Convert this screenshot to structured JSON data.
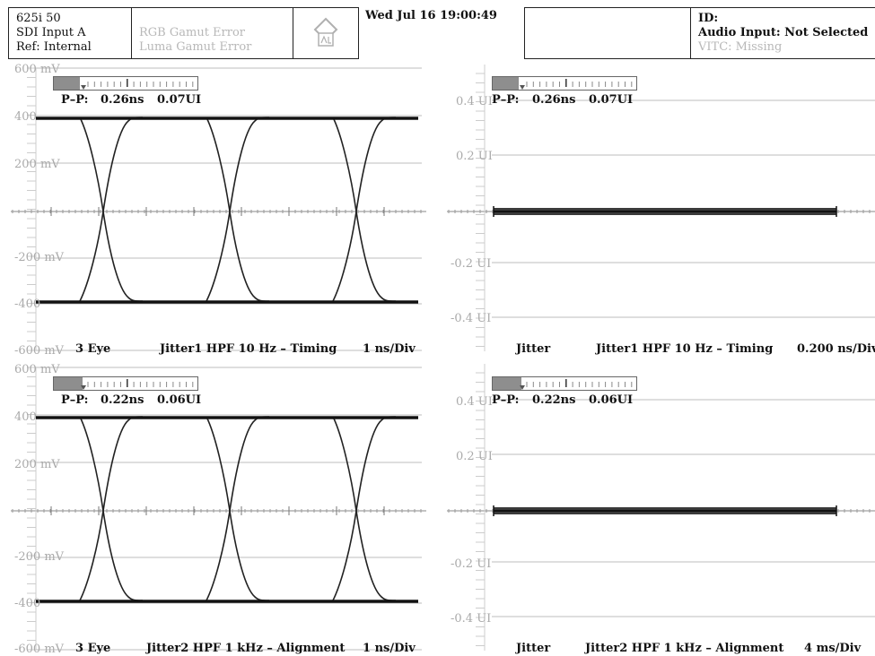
{
  "header": {
    "format": "625i 50",
    "input": "SDI Input A",
    "ref": "Ref: Internal",
    "rgb_gamut": "RGB Gamut Error",
    "luma_gamut": "Luma Gamut Error",
    "datetime": "Wed Jul 16 19:00:49",
    "id": "ID:",
    "audio": "Audio Input: Not Selected",
    "vitc": "VITC:  Missing"
  },
  "eye_axis": {
    "t600": "600 mV",
    "t400": "400",
    "t200": "200 mV",
    "tm200": "-200 mV",
    "tm400": "-400",
    "tm600": "-600 mV"
  },
  "jitter_axis": {
    "t04": "0.4 UI",
    "t02": "0.2 UI",
    "tm02": "-0.2 UI",
    "tm04": "-0.4 UI"
  },
  "panels": {
    "top_left": {
      "meter": {
        "pp_label": "P–P:",
        "ns": "0.26ns",
        "ui": "0.07UI",
        "fill": 0.18
      },
      "title": "3 Eye",
      "filter": "Jitter1 HPF 10 Hz – Timing",
      "scale": "1 ns/Div"
    },
    "top_right": {
      "meter": {
        "pp_label": "P–P:",
        "ns": "0.26ns",
        "ui": "0.07UI",
        "fill": 0.18
      },
      "title": "Jitter",
      "filter": "Jitter1 HPF 10 Hz – Timing",
      "scale": "0.200 ns/Div"
    },
    "bottom_left": {
      "meter": {
        "pp_label": "P–P:",
        "ns": "0.22ns",
        "ui": "0.06UI",
        "fill": 0.2
      },
      "title": "3 Eye",
      "filter": "Jitter2 HPF 1 kHz – Alignment",
      "scale": "1 ns/Div"
    },
    "bottom_right": {
      "meter": {
        "pp_label": "P–P:",
        "ns": "0.22ns",
        "ui": "0.06UI",
        "fill": 0.2
      },
      "title": "Jitter",
      "filter": "Jitter2 HPF 1 kHz – Alignment",
      "scale": "4 ms/Div"
    }
  }
}
